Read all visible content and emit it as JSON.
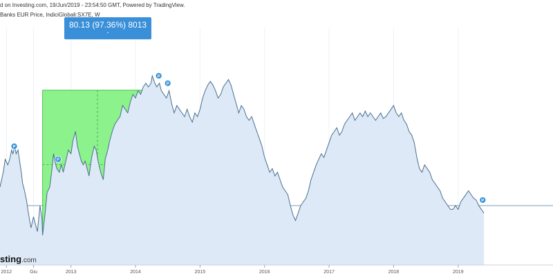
{
  "header": {
    "line1": "d on Investing.com, 19/Jun/2019 - 23:54:50 GMT, Powered by TradingView.",
    "line2": "Banks EUR Price, IndiciGlobali:SX7E, W"
  },
  "measure": {
    "value_label": "80.13 (97.36%) 8013",
    "sub_label": "-"
  },
  "watermark": {
    "brand": "sting",
    "suffix": ".com"
  },
  "colors": {
    "line": "#4a6e8f",
    "area": "#dde9f6",
    "selection": "#78f078",
    "baseline": "#7a9bb5",
    "marker": "#2f8fd8"
  },
  "chart_data": {
    "type": "area",
    "title": "",
    "xlabel": "",
    "ylabel": "",
    "x_ticks": [
      "2012",
      "Giu",
      "2013",
      "2014",
      "2015",
      "2016",
      "2017",
      "2018",
      "2019"
    ],
    "x_tick_years": [
      2012.0,
      2012.42,
      2013.0,
      2014.0,
      2015.0,
      2016.0,
      2017.0,
      2018.0,
      2019.0
    ],
    "xlim": [
      2011.9,
      2020.47
    ],
    "ylim": [
      68,
      196
    ],
    "baseline_value": 100,
    "selection": {
      "x_start": 2012.56,
      "x_end": 2014.26,
      "y_start": 82.13,
      "y_end": 162.26
    },
    "series": [
      {
        "points": [
          [
            2011.9,
            110
          ],
          [
            2011.95,
            118
          ],
          [
            2011.98,
            125
          ],
          [
            2012.02,
            122
          ],
          [
            2012.05,
            125
          ],
          [
            2012.08,
            130
          ],
          [
            2012.1,
            128
          ],
          [
            2012.13,
            132
          ],
          [
            2012.15,
            128
          ],
          [
            2012.18,
            130
          ],
          [
            2012.2,
            125
          ],
          [
            2012.23,
            118
          ],
          [
            2012.25,
            112
          ],
          [
            2012.28,
            108
          ],
          [
            2012.31,
            103
          ],
          [
            2012.34,
            96
          ],
          [
            2012.36,
            92
          ],
          [
            2012.38,
            88
          ],
          [
            2012.42,
            94
          ],
          [
            2012.45,
            90
          ],
          [
            2012.48,
            86
          ],
          [
            2012.52,
            100
          ],
          [
            2012.55,
            93
          ],
          [
            2012.56,
            84
          ],
          [
            2012.6,
            96
          ],
          [
            2012.63,
            107
          ],
          [
            2012.67,
            110
          ],
          [
            2012.7,
            118
          ],
          [
            2012.73,
            128
          ],
          [
            2012.75,
            124
          ],
          [
            2012.78,
            120
          ],
          [
            2012.82,
            118
          ],
          [
            2012.85,
            122
          ],
          [
            2012.88,
            118
          ],
          [
            2012.92,
            124
          ],
          [
            2012.96,
            130
          ],
          [
            2013.0,
            128
          ],
          [
            2013.03,
            135
          ],
          [
            2013.07,
            140
          ],
          [
            2013.1,
            132
          ],
          [
            2013.13,
            128
          ],
          [
            2013.16,
            124
          ],
          [
            2013.19,
            122
          ],
          [
            2013.22,
            124
          ],
          [
            2013.25,
            120
          ],
          [
            2013.28,
            116
          ],
          [
            2013.32,
            126
          ],
          [
            2013.36,
            132
          ],
          [
            2013.39,
            130
          ],
          [
            2013.42,
            124
          ],
          [
            2013.46,
            118
          ],
          [
            2013.5,
            114
          ],
          [
            2013.53,
            125
          ],
          [
            2013.57,
            130
          ],
          [
            2013.6,
            135
          ],
          [
            2013.64,
            140
          ],
          [
            2013.68,
            144
          ],
          [
            2013.72,
            146
          ],
          [
            2013.76,
            148
          ],
          [
            2013.8,
            154
          ],
          [
            2013.84,
            152
          ],
          [
            2013.88,
            150
          ],
          [
            2013.92,
            156
          ],
          [
            2013.96,
            160
          ],
          [
            2014.0,
            158
          ],
          [
            2014.04,
            162
          ],
          [
            2014.08,
            160
          ],
          [
            2014.12,
            164
          ],
          [
            2014.16,
            166
          ],
          [
            2014.2,
            164
          ],
          [
            2014.24,
            166
          ],
          [
            2014.26,
            170
          ],
          [
            2014.3,
            166
          ],
          [
            2014.33,
            164
          ],
          [
            2014.37,
            166
          ],
          [
            2014.4,
            162
          ],
          [
            2014.44,
            160
          ],
          [
            2014.48,
            158
          ],
          [
            2014.52,
            162
          ],
          [
            2014.56,
            155
          ],
          [
            2014.6,
            150
          ],
          [
            2014.64,
            154
          ],
          [
            2014.68,
            152
          ],
          [
            2014.72,
            150
          ],
          [
            2014.76,
            148
          ],
          [
            2014.8,
            152
          ],
          [
            2014.84,
            148
          ],
          [
            2014.88,
            145
          ],
          [
            2014.92,
            150
          ],
          [
            2014.96,
            148
          ],
          [
            2015.0,
            152
          ],
          [
            2015.04,
            158
          ],
          [
            2015.08,
            162
          ],
          [
            2015.12,
            165
          ],
          [
            2015.16,
            167
          ],
          [
            2015.2,
            165
          ],
          [
            2015.24,
            162
          ],
          [
            2015.28,
            158
          ],
          [
            2015.32,
            160
          ],
          [
            2015.36,
            164
          ],
          [
            2015.4,
            166
          ],
          [
            2015.44,
            168
          ],
          [
            2015.48,
            165
          ],
          [
            2015.52,
            160
          ],
          [
            2015.56,
            155
          ],
          [
            2015.6,
            150
          ],
          [
            2015.64,
            154
          ],
          [
            2015.68,
            152
          ],
          [
            2015.72,
            148
          ],
          [
            2015.76,
            146
          ],
          [
            2015.8,
            148
          ],
          [
            2015.84,
            144
          ],
          [
            2015.88,
            140
          ],
          [
            2015.92,
            136
          ],
          [
            2015.96,
            132
          ],
          [
            2016.0,
            126
          ],
          [
            2016.04,
            122
          ],
          [
            2016.08,
            118
          ],
          [
            2016.12,
            120
          ],
          [
            2016.16,
            116
          ],
          [
            2016.2,
            118
          ],
          [
            2016.24,
            114
          ],
          [
            2016.28,
            110
          ],
          [
            2016.32,
            108
          ],
          [
            2016.36,
            106
          ],
          [
            2016.4,
            100
          ],
          [
            2016.44,
            95
          ],
          [
            2016.48,
            92
          ],
          [
            2016.52,
            96
          ],
          [
            2016.56,
            100
          ],
          [
            2016.6,
            102
          ],
          [
            2016.64,
            104
          ],
          [
            2016.68,
            108
          ],
          [
            2016.72,
            114
          ],
          [
            2016.76,
            118
          ],
          [
            2016.8,
            122
          ],
          [
            2016.84,
            125
          ],
          [
            2016.88,
            128
          ],
          [
            2016.92,
            126
          ],
          [
            2016.96,
            130
          ],
          [
            2017.0,
            134
          ],
          [
            2017.04,
            138
          ],
          [
            2017.08,
            140
          ],
          [
            2017.12,
            142
          ],
          [
            2017.16,
            138
          ],
          [
            2017.2,
            140
          ],
          [
            2017.24,
            144
          ],
          [
            2017.28,
            146
          ],
          [
            2017.32,
            148
          ],
          [
            2017.36,
            150
          ],
          [
            2017.4,
            146
          ],
          [
            2017.44,
            148
          ],
          [
            2017.48,
            150
          ],
          [
            2017.52,
            148
          ],
          [
            2017.56,
            151
          ],
          [
            2017.6,
            148
          ],
          [
            2017.64,
            150
          ],
          [
            2017.68,
            148
          ],
          [
            2017.72,
            146
          ],
          [
            2017.76,
            148
          ],
          [
            2017.8,
            150
          ],
          [
            2017.84,
            147
          ],
          [
            2017.88,
            148
          ],
          [
            2017.92,
            150
          ],
          [
            2017.96,
            152
          ],
          [
            2018.0,
            154
          ],
          [
            2018.04,
            150
          ],
          [
            2018.08,
            148
          ],
          [
            2018.12,
            150
          ],
          [
            2018.16,
            146
          ],
          [
            2018.2,
            144
          ],
          [
            2018.24,
            140
          ],
          [
            2018.28,
            138
          ],
          [
            2018.32,
            134
          ],
          [
            2018.36,
            126
          ],
          [
            2018.4,
            120
          ],
          [
            2018.44,
            118
          ],
          [
            2018.48,
            122
          ],
          [
            2018.52,
            120
          ],
          [
            2018.56,
            118
          ],
          [
            2018.6,
            114
          ],
          [
            2018.64,
            112
          ],
          [
            2018.68,
            110
          ],
          [
            2018.72,
            108
          ],
          [
            2018.76,
            104
          ],
          [
            2018.8,
            102
          ],
          [
            2018.84,
            100
          ],
          [
            2018.88,
            98
          ],
          [
            2018.92,
            98
          ],
          [
            2018.96,
            100
          ],
          [
            2019.0,
            98
          ],
          [
            2019.04,
            102
          ],
          [
            2019.08,
            104
          ],
          [
            2019.12,
            106
          ],
          [
            2019.16,
            108
          ],
          [
            2019.2,
            106
          ],
          [
            2019.24,
            104
          ],
          [
            2019.28,
            103
          ],
          [
            2019.32,
            100
          ],
          [
            2019.36,
            98
          ],
          [
            2019.4,
            96
          ]
        ]
      }
    ],
    "markers": [
      {
        "label": "P",
        "x": 2012.12,
        "y": 132
      },
      {
        "label": "P",
        "x": 2012.8,
        "y": 125
      },
      {
        "label": "P",
        "x": 2014.36,
        "y": 170
      },
      {
        "label": "P",
        "x": 2014.5,
        "y": 166
      },
      {
        "label": "P",
        "x": 2019.38,
        "y": 103
      }
    ]
  }
}
